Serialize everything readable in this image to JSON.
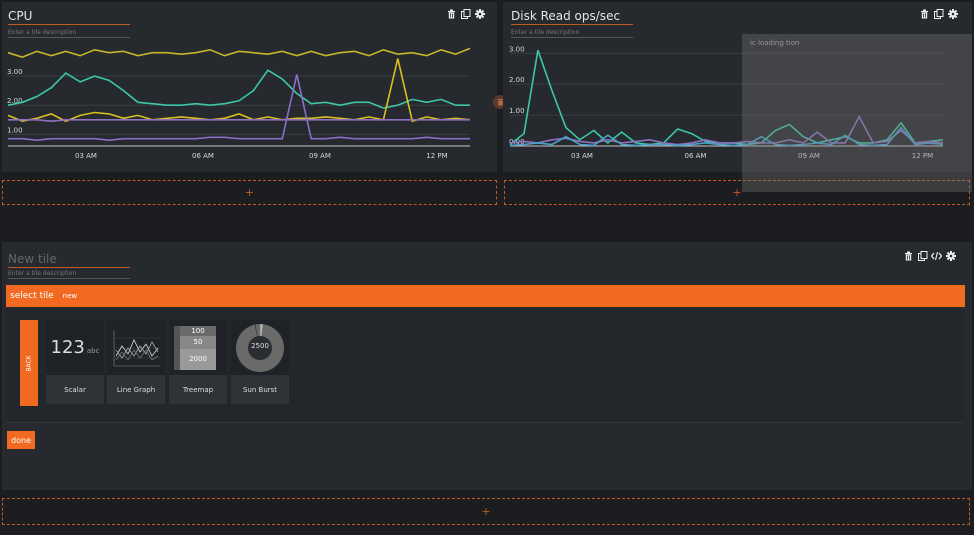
{
  "tiles": [
    {
      "title": "CPU",
      "description_placeholder": "Enter a tile description",
      "icons": [
        "trash-icon",
        "copy-icon",
        "gear-icon"
      ],
      "chart_data": {
        "type": "line",
        "title": "CPU",
        "x_ticks": [
          "03 AM",
          "06 AM",
          "09 AM",
          "12 PM"
        ],
        "y_ticks": [
          "1.00",
          "2.00",
          "3.00"
        ],
        "ylim": [
          0.6,
          4.1
        ],
        "series": [
          {
            "color": "#c9b52a",
            "values": [
              3.8,
              3.65,
              3.85,
              3.7,
              3.85,
              3.7,
              3.9,
              3.8,
              3.85,
              3.7,
              3.8,
              3.8,
              3.75,
              3.8,
              3.9,
              3.7,
              3.85,
              3.8,
              3.75,
              3.85,
              3.7,
              3.85,
              3.7,
              3.8,
              3.85,
              3.7,
              3.9,
              3.75,
              3.8,
              3.7,
              3.9,
              3.75,
              3.95
            ]
          },
          {
            "color": "#3cc8a8",
            "values": [
              2.0,
              2.1,
              2.3,
              2.6,
              3.1,
              2.8,
              3.0,
              2.85,
              2.5,
              2.1,
              2.05,
              2.0,
              2.0,
              2.05,
              2.0,
              2.05,
              2.15,
              2.5,
              3.2,
              2.9,
              2.4,
              2.05,
              2.1,
              2.0,
              2.1,
              2.1,
              1.9,
              2.0,
              2.2,
              2.1,
              2.2,
              2.0,
              2.0
            ]
          },
          {
            "color": "#d8c020",
            "values": [
              1.65,
              1.45,
              1.55,
              1.7,
              1.45,
              1.65,
              1.75,
              1.7,
              1.55,
              1.65,
              1.5,
              1.55,
              1.6,
              1.55,
              1.5,
              1.55,
              1.7,
              1.5,
              1.6,
              1.5,
              1.55,
              1.55,
              1.6,
              1.55,
              1.5,
              1.6,
              1.5,
              3.6,
              1.45,
              1.6,
              1.5,
              1.55,
              1.5
            ]
          },
          {
            "color": "#9070c0",
            "values": [
              1.5,
              1.5,
              1.5,
              1.45,
              1.5,
              1.5,
              1.5,
              1.5,
              1.5,
              1.5,
              1.5,
              1.5,
              1.5,
              1.5,
              1.5,
              1.5,
              1.5,
              1.5,
              1.5,
              1.5,
              1.5,
              1.5,
              1.5,
              1.5,
              1.5,
              1.5,
              1.5,
              1.5,
              1.5,
              1.5,
              1.5,
              1.5,
              1.5
            ]
          },
          {
            "color": "#8a6fca",
            "values": [
              0.85,
              0.85,
              0.8,
              0.85,
              0.85,
              0.85,
              0.85,
              0.8,
              0.85,
              0.85,
              0.85,
              0.85,
              0.85,
              0.85,
              0.9,
              0.9,
              0.85,
              0.85,
              0.85,
              0.85,
              3.05,
              0.85,
              0.85,
              0.9,
              0.85,
              0.85,
              0.85,
              0.85,
              0.85,
              0.9,
              0.85,
              0.85,
              0.85
            ]
          }
        ]
      }
    },
    {
      "title": "Disk Read ops/sec",
      "description_placeholder": "Enter a tile description",
      "icons": [
        "trash-icon",
        "copy-icon",
        "gear-icon"
      ],
      "overlay_text": "ic loading tion",
      "chart_data": {
        "type": "line",
        "title": "Disk Read ops/sec",
        "x_ticks": [
          "03 AM",
          "06 AM",
          "09 AM",
          "12 PM"
        ],
        "y_ticks": [
          "0.00",
          "1.00",
          "2.00",
          "3.00"
        ],
        "ylim": [
          0,
          3.3
        ],
        "series": [
          {
            "color": "#3cc8a8",
            "values": [
              0.05,
              0.4,
              3.1,
              1.8,
              0.6,
              0.2,
              0.5,
              0.1,
              0.45,
              0.1,
              0.05,
              0.1,
              0.55,
              0.4,
              0.15,
              0.1,
              0.1,
              0.05,
              0.1,
              0.5,
              0.7,
              0.3,
              0.1,
              0.2,
              0.3,
              0.1,
              0.1,
              0.2,
              0.75,
              0.1,
              0.15,
              0.2
            ]
          },
          {
            "color": "#9070c0",
            "values": [
              0.1,
              0.15,
              0.1,
              0.2,
              0.25,
              0.15,
              0.1,
              0.2,
              0.1,
              0.15,
              0.2,
              0.1,
              0.05,
              0.1,
              0.2,
              0.1,
              0.1,
              0.15,
              0.1,
              0.1,
              0.2,
              0.1,
              0.45,
              0.1,
              0.1,
              0.95,
              0.1,
              0.15,
              0.5,
              0.1,
              0.15,
              0.1
            ]
          },
          {
            "color": "#4aa0c8",
            "values": [
              0.02,
              0.05,
              0.1,
              0.05,
              0.3,
              0.05,
              0.02,
              0.35,
              0.05,
              0.02,
              0.05,
              0.05,
              0.02,
              0.05,
              0.1,
              0.05,
              0.02,
              0.05,
              0.3,
              0.05,
              0.02,
              0.05,
              0.1,
              0.05,
              0.35,
              0.05,
              0.02,
              0.05,
              0.6,
              0.05,
              0.1,
              0.05
            ]
          }
        ]
      }
    }
  ],
  "new_tile": {
    "title_placeholder": "New tile",
    "description_placeholder": "Enter a tile description",
    "icons": [
      "trash-icon",
      "copy-icon",
      "code-icon",
      "gear-icon"
    ],
    "select_bar": {
      "label": "select tile",
      "tag": "new"
    },
    "back_label": "BACK",
    "cards": [
      {
        "label": "Scalar",
        "preview_text": "123",
        "preview_sub": "abc"
      },
      {
        "label": "Line Graph"
      },
      {
        "label": "Treemap",
        "values": [
          "100",
          "50",
          "2000"
        ]
      },
      {
        "label": "Sun Burst",
        "center_value": "2500"
      }
    ],
    "done_label": "done"
  },
  "add_symbol": "+"
}
